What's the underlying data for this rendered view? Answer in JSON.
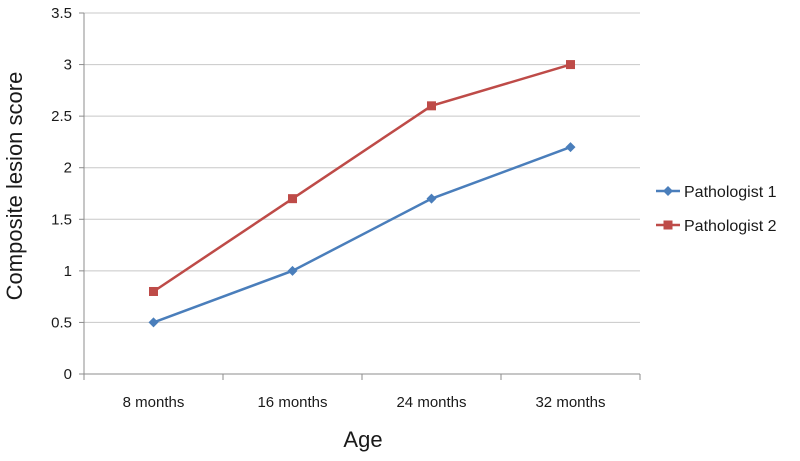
{
  "chart_data": {
    "type": "line",
    "title": "",
    "xlabel": "Age",
    "ylabel": "Composite lesion score",
    "categories": [
      "8 months",
      "16 months",
      "24 months",
      "32 months"
    ],
    "ylim": [
      0,
      3.5
    ],
    "yticks": [
      "0",
      "0.5",
      "1",
      "1.5",
      "2",
      "2.5",
      "3",
      "3.5"
    ],
    "yticks_values": [
      0,
      0.5,
      1,
      1.5,
      2,
      2.5,
      3,
      3.5
    ],
    "grid": true,
    "legend_position": "right",
    "series": [
      {
        "name": "Pathologist 1",
        "values": [
          0.5,
          1.0,
          1.7,
          2.2
        ],
        "color": "#4a7ebb",
        "marker": "diamond"
      },
      {
        "name": "Pathologist 2",
        "values": [
          0.8,
          1.7,
          2.6,
          3.0
        ],
        "color": "#be4b48",
        "marker": "square"
      }
    ]
  }
}
